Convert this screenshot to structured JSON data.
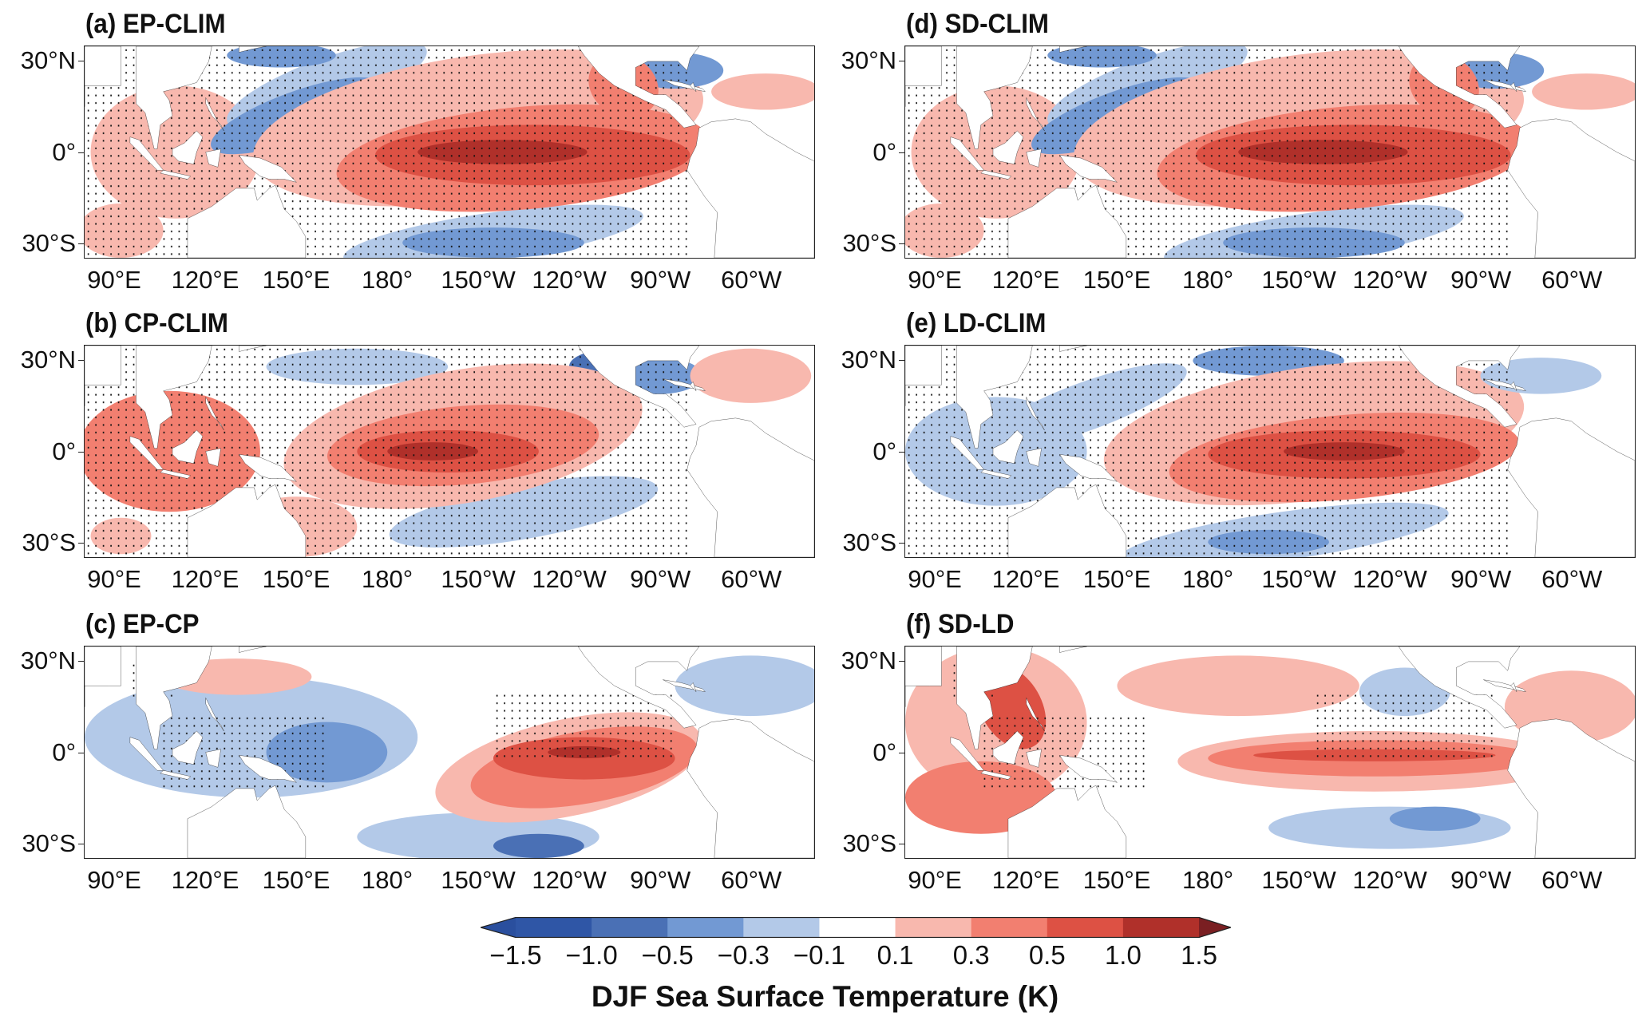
{
  "chart_data": {
    "type": "heatmap",
    "description_kind": "filled contour maps",
    "panels": [
      {
        "id": "a",
        "title": "(a) EP-CLIM",
        "pattern": "ep",
        "stippling": "dense"
      },
      {
        "id": "b",
        "title": "(b) CP-CLIM",
        "pattern": "cp",
        "stippling": "dense"
      },
      {
        "id": "c",
        "title": "(c) EP-CP",
        "pattern": "diff_epcp",
        "stippling": "sparse"
      },
      {
        "id": "d",
        "title": "(d) SD-CLIM",
        "pattern": "ep",
        "stippling": "dense"
      },
      {
        "id": "e",
        "title": "(e) LD-CLIM",
        "pattern": "ld",
        "stippling": "dense"
      },
      {
        "id": "f",
        "title": "(f) SD-LD",
        "pattern": "diff_sdld",
        "stippling": "sparse"
      }
    ],
    "lat_ticks": [
      "30°N",
      "0°",
      "30°S"
    ],
    "lat_values": [
      30,
      0,
      -30
    ],
    "lon_ticks": [
      "90°E",
      "120°E",
      "150°E",
      "180°",
      "150°W",
      "120°W",
      "90°W",
      "60°W"
    ],
    "lon_values": [
      90,
      120,
      150,
      180,
      210,
      240,
      270,
      300
    ],
    "lon_range": [
      80,
      321
    ],
    "lat_range": [
      -35,
      35
    ],
    "colorbar": {
      "labels": [
        "−1.5",
        "−1.0",
        "−0.5",
        "−0.3",
        "−0.1",
        "0.1",
        "0.3",
        "0.5",
        "1.0",
        "1.5"
      ],
      "levels": [
        -1.5,
        -1.0,
        -0.5,
        -0.3,
        -0.1,
        0.1,
        0.3,
        0.5,
        1.0,
        1.5
      ],
      "colors": [
        "#2f56a6",
        "#4a70b5",
        "#7299d3",
        "#b3c9e8",
        "#ffffff",
        "#f8b8ae",
        "#f27f70",
        "#dd5144",
        "#b0302a"
      ],
      "under_color": "#2a4f9e",
      "over_color": "#7a1f22",
      "title": "DJF Sea Surface Temperature (K)"
    }
  }
}
